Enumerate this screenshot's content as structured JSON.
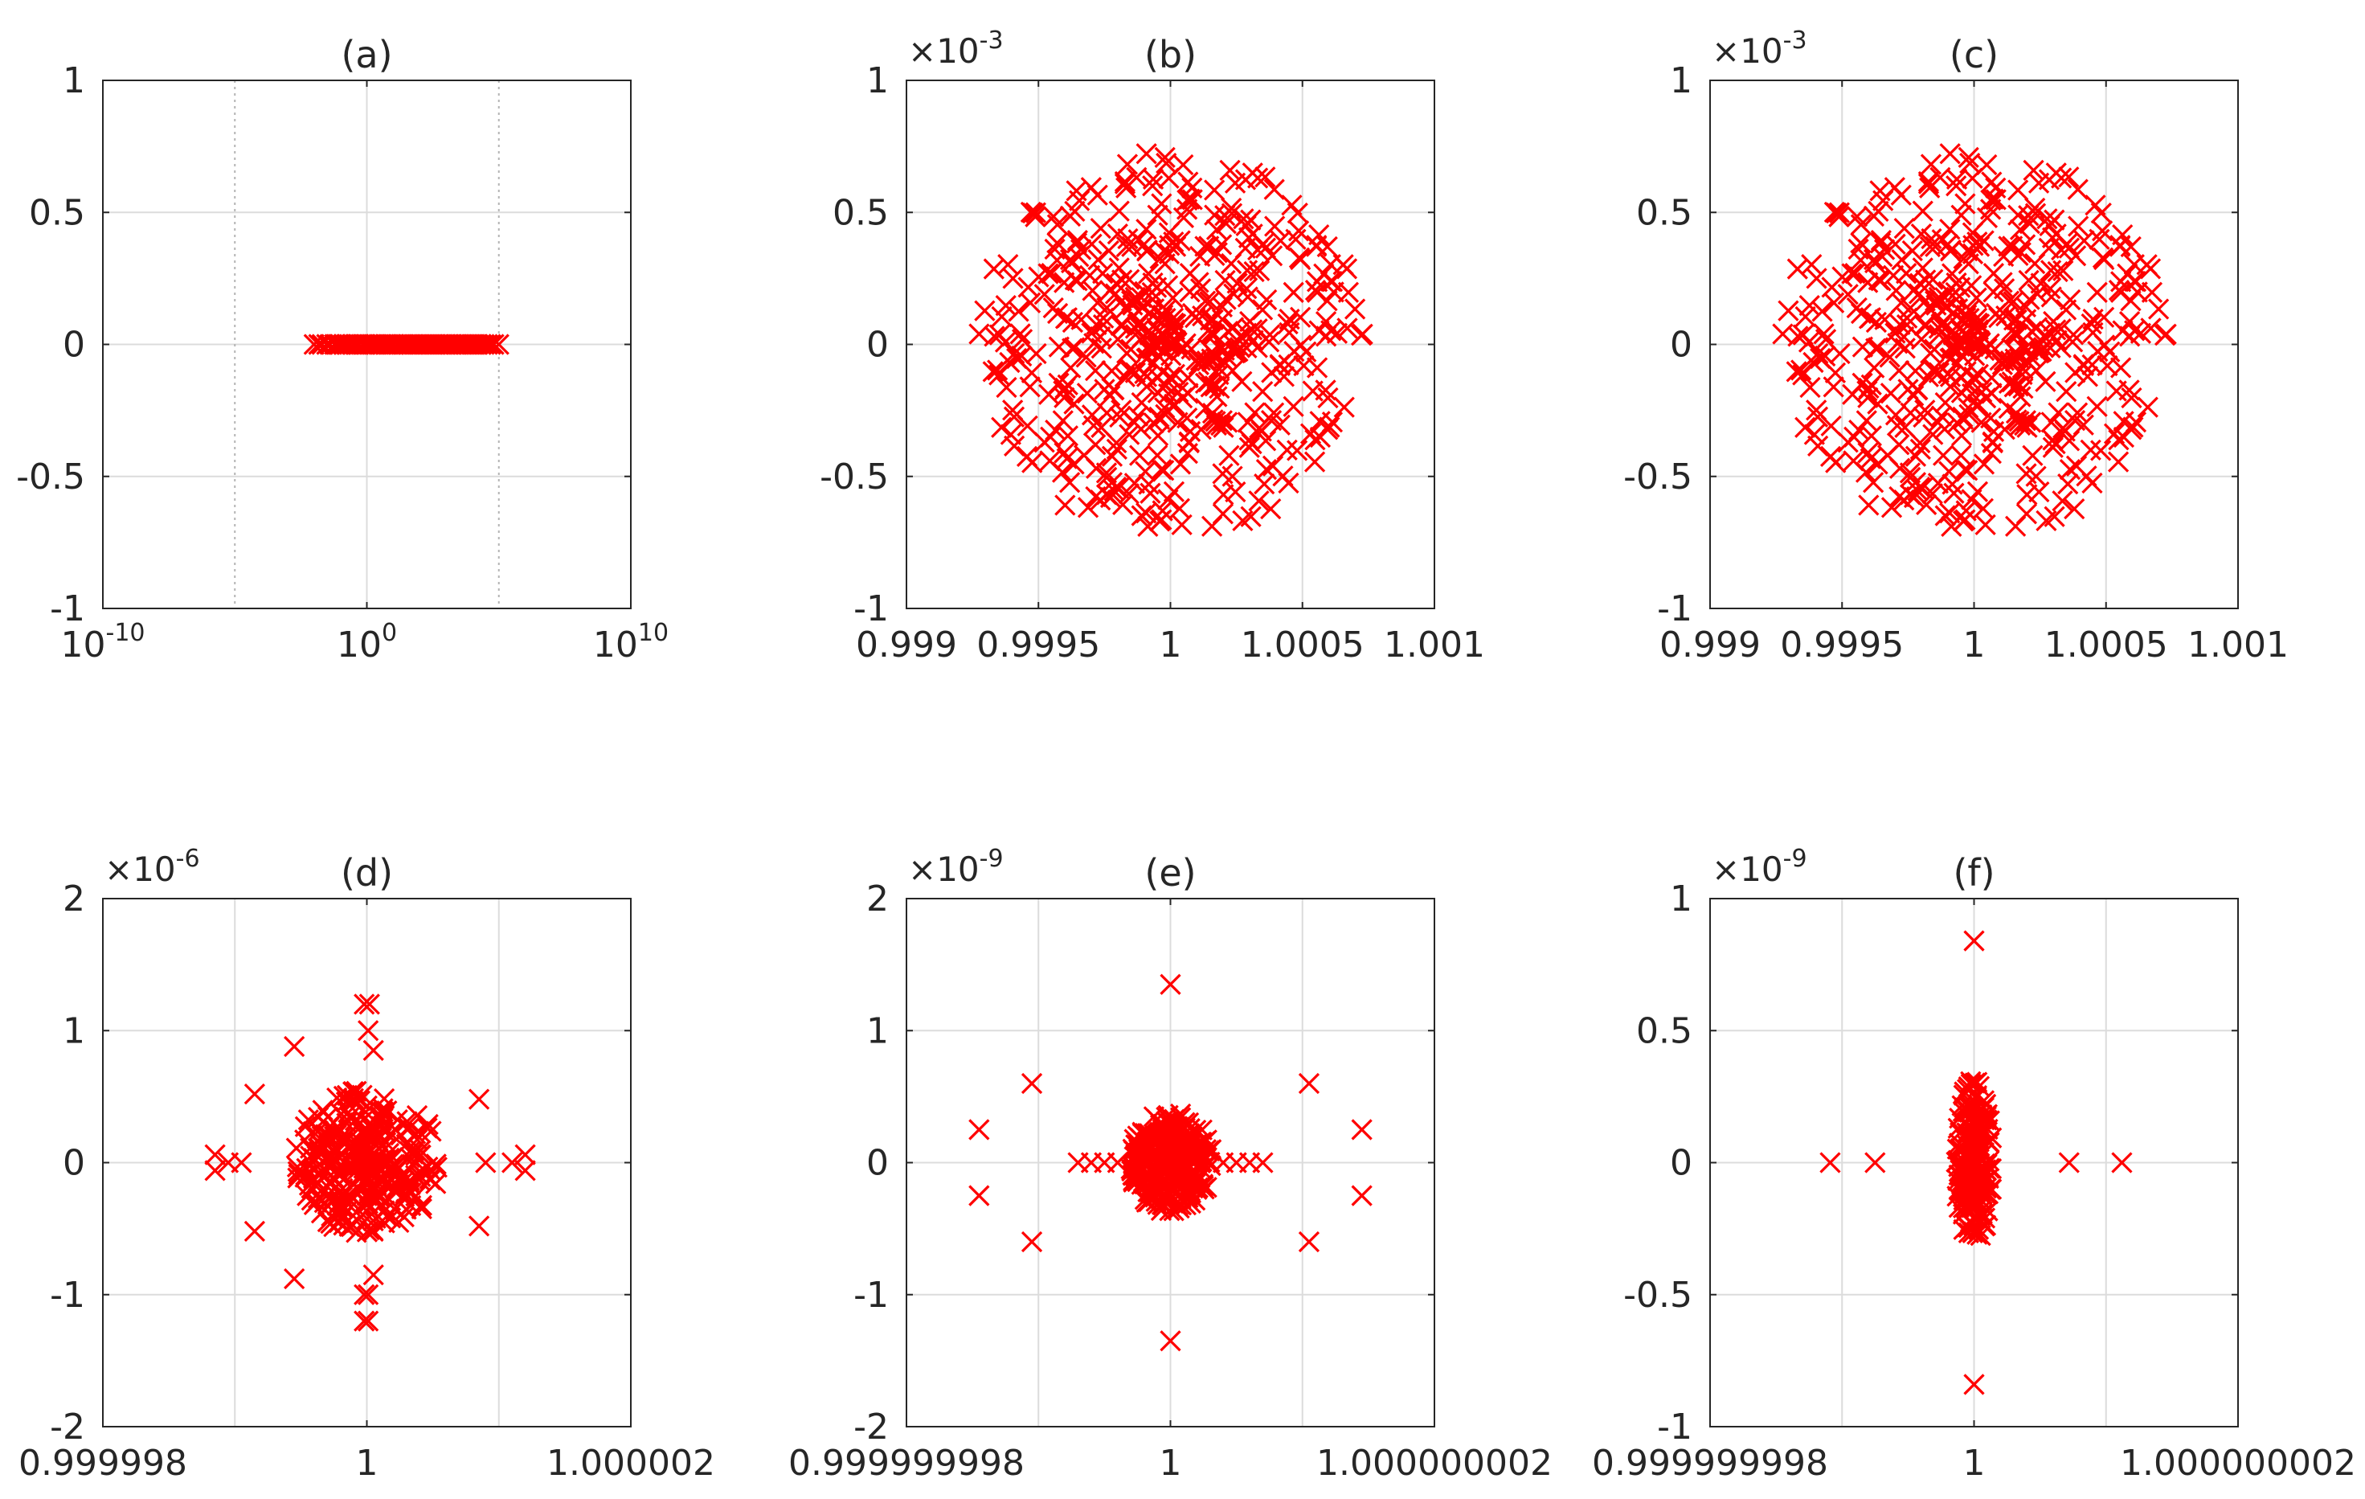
{
  "figure": {
    "marker_color": "#ff0000",
    "grid_color": "#dcdcdc",
    "axis_color": "#262626"
  },
  "chart_data": [
    {
      "type": "scatter",
      "title": "(a)",
      "exponent_label": "",
      "xlabel": "",
      "ylabel": "",
      "xscale": "log",
      "xlim": [
        1e-10,
        10000000000.0
      ],
      "ylim": [
        -1,
        1
      ],
      "xticks": [
        1e-10,
        1,
        10000000000.0
      ],
      "xtick_labels": [
        {
          "base": "10",
          "exp": "-10"
        },
        {
          "base": "10",
          "exp": "0"
        },
        {
          "base": "10",
          "exp": "10"
        }
      ],
      "yticks": [
        -1,
        -0.5,
        0,
        0.5,
        1
      ],
      "ytick_labels": [
        "-1",
        "-0.5",
        "0",
        "0.5",
        "1"
      ],
      "minor_xgrid": [
        1e-05,
        100000.0
      ],
      "grid": true,
      "description_of_points": "eigenvalues on real axis, x from ~0.01 to ~1e5, y = 0",
      "x": [
        0.01,
        0.015,
        0.02,
        0.03,
        0.04,
        0.06,
        0.08,
        0.1,
        0.13,
        0.17,
        0.22,
        0.3,
        0.4,
        0.5,
        0.7,
        0.9,
        1.2,
        1.6,
        2.1,
        2.8,
        3.7,
        5,
        6.5,
        8.5,
        11,
        15,
        20,
        26,
        35,
        46,
        60,
        80,
        105,
        140,
        185,
        245,
        320,
        420,
        560,
        740,
        980,
        1300,
        1700,
        2300,
        3000,
        4000,
        5300,
        7000,
        9300,
        12000,
        16000,
        21000,
        28000,
        37000,
        49000,
        65000,
        100000
      ],
      "y": [
        0,
        0,
        0,
        0,
        0,
        0,
        0,
        0,
        0,
        0,
        0,
        0,
        0,
        0,
        0,
        0,
        0,
        0,
        0,
        0,
        0,
        0,
        0,
        0,
        0,
        0,
        0,
        0,
        0,
        0,
        0,
        0,
        0,
        0,
        0,
        0,
        0,
        0,
        0,
        0,
        0,
        0,
        0,
        0,
        0,
        0,
        0,
        0,
        0,
        0,
        0,
        0,
        0,
        0,
        0,
        0,
        0
      ]
    },
    {
      "type": "scatter",
      "title": "(b)",
      "exponent_label": {
        "base": "×10",
        "exp": "-3"
      },
      "xlabel": "",
      "ylabel": "",
      "xscale": "linear",
      "xlim": [
        0.999,
        1.001
      ],
      "ylim": [
        -0.001,
        0.001
      ],
      "xticks": [
        0.999,
        0.9995,
        1,
        1.0005,
        1.001
      ],
      "xtick_labels": [
        "0.999",
        "0.9995",
        "1",
        "1.0005",
        "1.001"
      ],
      "yticks": [
        -0.001,
        -0.0005,
        0,
        0.0005,
        0.001
      ],
      "ytick_labels": [
        "-1",
        "-0.5",
        "0",
        "0.5",
        "1"
      ],
      "grid": true,
      "points": {
        "kind": "disk",
        "center": [
          1,
          0
        ],
        "radius_x": 0.00073,
        "radius_y": 0.00073,
        "count": 520,
        "seed": 7
      }
    },
    {
      "type": "scatter",
      "title": "(c)",
      "exponent_label": {
        "base": "×10",
        "exp": "-3"
      },
      "xlabel": "",
      "ylabel": "",
      "xscale": "linear",
      "xlim": [
        0.999,
        1.001
      ],
      "ylim": [
        -0.001,
        0.001
      ],
      "xticks": [
        0.999,
        0.9995,
        1,
        1.0005,
        1.001
      ],
      "xtick_labels": [
        "0.999",
        "0.9995",
        "1",
        "1.0005",
        "1.001"
      ],
      "yticks": [
        -0.001,
        -0.0005,
        0,
        0.0005,
        0.001
      ],
      "ytick_labels": [
        "-1",
        "-0.5",
        "0",
        "0.5",
        "1"
      ],
      "grid": true,
      "points": {
        "kind": "disk",
        "center": [
          1,
          0
        ],
        "radius_x": 0.00073,
        "radius_y": 0.00073,
        "count": 520,
        "seed": 7
      }
    },
    {
      "type": "scatter",
      "title": "(d)",
      "exponent_label": {
        "base": "×10",
        "exp": "-6"
      },
      "xlabel": "",
      "ylabel": "",
      "xscale": "linear",
      "xlim": [
        0.999998,
        1.000002
      ],
      "ylim": [
        -2e-06,
        2e-06
      ],
      "xticks": [
        0.999998,
        1,
        1.000002
      ],
      "xtick_labels": [
        "0.999998",
        "1",
        "1.000002"
      ],
      "minor_xgrid": [
        0.999999,
        1.000001
      ],
      "yticks": [
        -2e-06,
        -1e-06,
        0,
        1e-06,
        2e-06
      ],
      "ytick_labels": [
        "-2",
        "-1",
        "0",
        "1",
        "2"
      ],
      "grid": true,
      "points": {
        "kind": "disk",
        "center": [
          1,
          0
        ],
        "radius_x": 5.5e-07,
        "radius_y": 5.5e-07,
        "count": 320,
        "seed": 11
      },
      "outliers_x": [
        0.99999895,
        0.99999885,
        0.99999885,
        0.99999905,
        0.99999915,
        0.99999915,
        0.99999945,
        0.99999945,
        0.99999998,
        1.00000002,
        1.00000001,
        0.99999998,
        1.00000001,
        0.99999998,
        1.00000001,
        1.00000005,
        1.00000005,
        1.00000085,
        1.00000085,
        1.0000009,
        1.0000012,
        1.0000011,
        1.0000012
      ],
      "outliers_y": [
        0.0,
        6e-08,
        -6e-08,
        0.0,
        5.2e-07,
        -5.2e-07,
        8.8e-07,
        -8.8e-07,
        1.2e-06,
        1.2e-06,
        1e-06,
        -1.2e-06,
        -1.2e-06,
        -1e-06,
        -1e-06,
        8.5e-07,
        -8.5e-07,
        4.8e-07,
        -4.8e-07,
        0.0,
        6e-08,
        0.0,
        -6e-08
      ]
    },
    {
      "type": "scatter",
      "title": "(e)",
      "exponent_label": {
        "base": "×10",
        "exp": "-9"
      },
      "xlabel": "",
      "ylabel": "",
      "xscale": "linear",
      "xlim": [
        0.999999998,
        1.000000002
      ],
      "ylim": [
        -2e-09,
        2e-09
      ],
      "xticks": [
        0.999999998,
        1,
        1.000000002
      ],
      "xtick_labels": [
        "0.999999998",
        "1",
        "1.000000002"
      ],
      "minor_xgrid": [
        0.999999999,
        1.000000001
      ],
      "yticks": [
        -2e-09,
        -1e-09,
        0,
        1e-09,
        2e-09
      ],
      "ytick_labels": [
        "-2",
        "-1",
        "0",
        "1",
        "2"
      ],
      "grid": true,
      "points": {
        "kind": "disk",
        "center": [
          1,
          0
        ],
        "radius_x": 3.2e-10,
        "radius_y": 3.8e-10,
        "count": 300,
        "seed": 23
      },
      "outliers_x": [
        0.99999999855,
        0.99999999855,
        0.99999999895,
        0.99999999895,
        1,
        1,
        1.00000000105,
        1.00000000105,
        1.00000000145,
        1.00000000145,
        0.9999999993,
        0.9999999994,
        0.9999999995,
        0.9999999996,
        1.0000000004,
        1.0000000005,
        1.0000000006,
        1.0000000007
      ],
      "outliers_y": [
        2.5e-10,
        -2.5e-10,
        6e-10,
        -6e-10,
        1.35e-09,
        -1.35e-09,
        6e-10,
        -6e-10,
        2.5e-10,
        -2.5e-10,
        0,
        0,
        0,
        0,
        0,
        0,
        0,
        0
      ]
    },
    {
      "type": "scatter",
      "title": "(f)",
      "exponent_label": {
        "base": "×10",
        "exp": "-9"
      },
      "xlabel": "",
      "ylabel": "",
      "xscale": "linear",
      "xlim": [
        0.999999998,
        1.000000002
      ],
      "ylim": [
        -1e-09,
        1e-09
      ],
      "xticks": [
        0.999999998,
        1,
        1.000000002
      ],
      "xtick_labels": [
        "0.999999998",
        "1",
        "1.000000002"
      ],
      "minor_xgrid": [
        0.999999999,
        1.000000001
      ],
      "yticks": [
        -1e-09,
        -5e-10,
        0,
        5e-10,
        1e-09
      ],
      "ytick_labels": [
        "-1",
        "-0.5",
        "0",
        "0.5",
        "1"
      ],
      "grid": true,
      "points": {
        "kind": "disk",
        "center": [
          1,
          0
        ],
        "radius_x": 1.4e-10,
        "radius_y": 3.2e-10,
        "count": 220,
        "seed": 31
      },
      "outliers_x": [
        0.99999999891,
        0.99999999925,
        1.00000000072,
        1.00000000112,
        1,
        1
      ],
      "outliers_y": [
        0,
        0,
        0,
        0,
        8.4e-10,
        -8.4e-10
      ]
    }
  ]
}
